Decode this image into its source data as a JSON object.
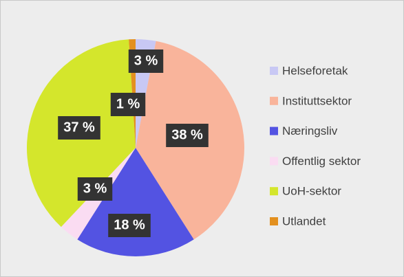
{
  "chart_data": {
    "type": "pie",
    "categories": [
      "Helseforetak",
      "Instituttsektor",
      "Næringsliv",
      "Offentlig sektor",
      "UoH-sektor",
      "Utlandet"
    ],
    "values": [
      3,
      38,
      18,
      3,
      37,
      1
    ],
    "value_labels": [
      "3 %",
      "38 %",
      "18 %",
      "3 %",
      "37 %",
      "1 %"
    ],
    "colors": [
      "#c8c8f4",
      "#f9b49b",
      "#5353e2",
      "#fadcf2",
      "#d4e62c",
      "#e3901f"
    ],
    "legend": "right"
  }
}
